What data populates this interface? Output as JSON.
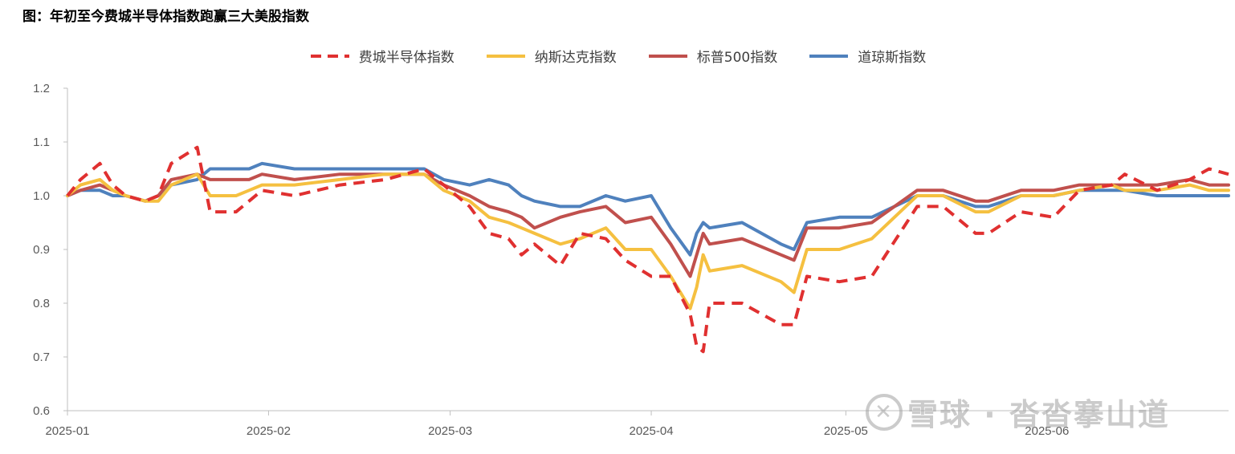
{
  "chart_data": {
    "type": "line",
    "title": "图：年初至今费城半导体指数跑赢三大美股指数",
    "xlabel": "",
    "ylabel": "",
    "ylim": [
      0.6,
      1.2
    ],
    "yticks": [
      "0.6",
      "0.7",
      "0.8",
      "0.9",
      "1.0",
      "1.1",
      "1.2"
    ],
    "xlim": [
      "2025-01-01",
      "2025-06-29"
    ],
    "xticks": [
      {
        "label": "2025-01",
        "date": "2025-01-01"
      },
      {
        "label": "2025-02",
        "date": "2025-02-01"
      },
      {
        "label": "2025-03",
        "date": "2025-03-01"
      },
      {
        "label": "2025-04",
        "date": "2025-04-01"
      },
      {
        "label": "2025-05",
        "date": "2025-05-01"
      },
      {
        "label": "2025-06",
        "date": "2025-06-01"
      }
    ],
    "grid": false,
    "legend_position": "top",
    "x": [
      "2025-01-01",
      "2025-01-03",
      "2025-01-06",
      "2025-01-08",
      "2025-01-10",
      "2025-01-13",
      "2025-01-15",
      "2025-01-17",
      "2025-01-21",
      "2025-01-23",
      "2025-01-27",
      "2025-01-29",
      "2025-01-31",
      "2025-02-05",
      "2025-02-12",
      "2025-02-19",
      "2025-02-25",
      "2025-02-28",
      "2025-03-04",
      "2025-03-07",
      "2025-03-10",
      "2025-03-12",
      "2025-03-14",
      "2025-03-18",
      "2025-03-21",
      "2025-03-25",
      "2025-03-28",
      "2025-04-01",
      "2025-04-04",
      "2025-04-07",
      "2025-04-08",
      "2025-04-09",
      "2025-04-10",
      "2025-04-15",
      "2025-04-21",
      "2025-04-23",
      "2025-04-25",
      "2025-04-30",
      "2025-05-05",
      "2025-05-12",
      "2025-05-16",
      "2025-05-21",
      "2025-05-23",
      "2025-05-28",
      "2025-06-02",
      "2025-06-06",
      "2025-06-11",
      "2025-06-13",
      "2025-06-18",
      "2025-06-23",
      "2025-06-26",
      "2025-06-29"
    ],
    "series": [
      {
        "name": "费城半导体指数",
        "color": "#e03030",
        "dash": true,
        "values": [
          1.0,
          1.03,
          1.06,
          1.02,
          1.0,
          0.99,
          1.0,
          1.06,
          1.09,
          0.97,
          0.97,
          0.99,
          1.01,
          1.0,
          1.02,
          1.03,
          1.05,
          1.02,
          0.98,
          0.93,
          0.92,
          0.89,
          0.91,
          0.87,
          0.93,
          0.92,
          0.88,
          0.85,
          0.85,
          0.78,
          0.72,
          0.71,
          0.8,
          0.8,
          0.76,
          0.76,
          0.85,
          0.84,
          0.85,
          0.98,
          0.98,
          0.93,
          0.93,
          0.97,
          0.96,
          1.01,
          1.02,
          1.04,
          1.01,
          1.03,
          1.05,
          1.04
        ]
      },
      {
        "name": "纳斯达克指数",
        "color": "#f5c040",
        "dash": false,
        "values": [
          1.0,
          1.02,
          1.03,
          1.01,
          1.0,
          0.99,
          0.99,
          1.02,
          1.04,
          1.0,
          1.0,
          1.01,
          1.02,
          1.02,
          1.03,
          1.04,
          1.04,
          1.01,
          0.99,
          0.96,
          0.95,
          0.94,
          0.93,
          0.91,
          0.92,
          0.94,
          0.9,
          0.9,
          0.85,
          0.79,
          0.83,
          0.89,
          0.86,
          0.87,
          0.84,
          0.82,
          0.9,
          0.9,
          0.92,
          1.0,
          1.0,
          0.97,
          0.97,
          1.0,
          1.0,
          1.01,
          1.02,
          1.01,
          1.01,
          1.02,
          1.01,
          1.01
        ]
      },
      {
        "name": "标普500指数",
        "color": "#c0504d",
        "dash": false,
        "values": [
          1.0,
          1.01,
          1.02,
          1.01,
          1.0,
          0.99,
          1.0,
          1.03,
          1.04,
          1.03,
          1.03,
          1.03,
          1.04,
          1.03,
          1.04,
          1.04,
          1.04,
          1.02,
          1.0,
          0.98,
          0.97,
          0.96,
          0.94,
          0.96,
          0.97,
          0.98,
          0.95,
          0.96,
          0.91,
          0.85,
          0.89,
          0.93,
          0.91,
          0.92,
          0.89,
          0.88,
          0.94,
          0.94,
          0.95,
          1.01,
          1.01,
          0.99,
          0.99,
          1.01,
          1.01,
          1.02,
          1.02,
          1.02,
          1.02,
          1.03,
          1.02,
          1.02
        ]
      },
      {
        "name": "道琼斯指数",
        "color": "#4f81bd",
        "dash": false,
        "values": [
          1.0,
          1.01,
          1.01,
          1.0,
          1.0,
          0.99,
          1.0,
          1.02,
          1.03,
          1.05,
          1.05,
          1.05,
          1.06,
          1.05,
          1.05,
          1.05,
          1.05,
          1.03,
          1.02,
          1.03,
          1.02,
          1.0,
          0.99,
          0.98,
          0.98,
          1.0,
          0.99,
          1.0,
          0.94,
          0.89,
          0.93,
          0.95,
          0.94,
          0.95,
          0.91,
          0.9,
          0.95,
          0.96,
          0.96,
          1.0,
          1.0,
          0.98,
          0.98,
          1.0,
          1.0,
          1.01,
          1.01,
          1.01,
          1.0,
          1.0,
          1.0,
          1.0
        ]
      }
    ]
  },
  "watermark": {
    "text": "雪球 · 沓沓搴山道",
    "icon": "xueqiu-logo"
  }
}
